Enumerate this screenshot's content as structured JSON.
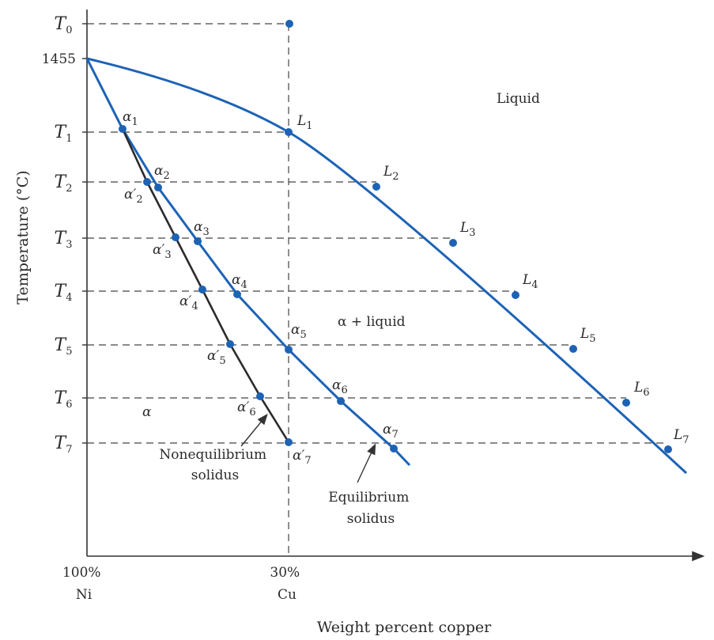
{
  "y_axis": {
    "title": "Temperature (°C)",
    "ticks": [
      {
        "main": "T",
        "sub": "0"
      },
      {
        "main": "1455",
        "sub": ""
      },
      {
        "main": "T",
        "sub": "1"
      },
      {
        "main": "T",
        "sub": "2"
      },
      {
        "main": "T",
        "sub": "3"
      },
      {
        "main": "T",
        "sub": "4"
      },
      {
        "main": "T",
        "sub": "5"
      },
      {
        "main": "T",
        "sub": "6"
      },
      {
        "main": "T",
        "sub": "7"
      }
    ]
  },
  "x_axis": {
    "title": "Weight percent copper",
    "left_label": [
      "100%",
      "Ni"
    ],
    "mid_label": [
      "30%",
      "Cu"
    ]
  },
  "regions": {
    "liquid": "Liquid",
    "two_phase": "α + liquid",
    "alpha": "α"
  },
  "curve_labels": {
    "nonequilibrium": [
      "Nonequilibrium",
      "solidus"
    ],
    "equilibrium": [
      "Equilibrium",
      "solidus"
    ]
  },
  "liquidus_points": [
    {
      "main": "L",
      "sub": "1"
    },
    {
      "main": "L",
      "sub": "2"
    },
    {
      "main": "L",
      "sub": "3"
    },
    {
      "main": "L",
      "sub": "4"
    },
    {
      "main": "L",
      "sub": "5"
    },
    {
      "main": "L",
      "sub": "6"
    },
    {
      "main": "L",
      "sub": "7"
    }
  ],
  "equilibrium_solidus_points": [
    {
      "main": "α",
      "sub": "1"
    },
    {
      "main": "α",
      "sub": "2"
    },
    {
      "main": "α",
      "sub": "3"
    },
    {
      "main": "α",
      "sub": "4"
    },
    {
      "main": "α",
      "sub": "5"
    },
    {
      "main": "α",
      "sub": "6"
    },
    {
      "main": "α",
      "sub": "7"
    }
  ],
  "nonequilibrium_solidus_points": [
    {
      "main": "α′",
      "sub": "2"
    },
    {
      "main": "α′",
      "sub": "3"
    },
    {
      "main": "α′",
      "sub": "4"
    },
    {
      "main": "α′",
      "sub": "5"
    },
    {
      "main": "α′",
      "sub": "6"
    },
    {
      "main": "α′",
      "sub": "7"
    }
  ],
  "colors": {
    "equilibrium_curves": "#1d63b5",
    "nonequilibrium_curve": "#2b2b2b",
    "points": "#1d63b5",
    "dashed_lines": "#444444",
    "axes": "#333333"
  }
}
